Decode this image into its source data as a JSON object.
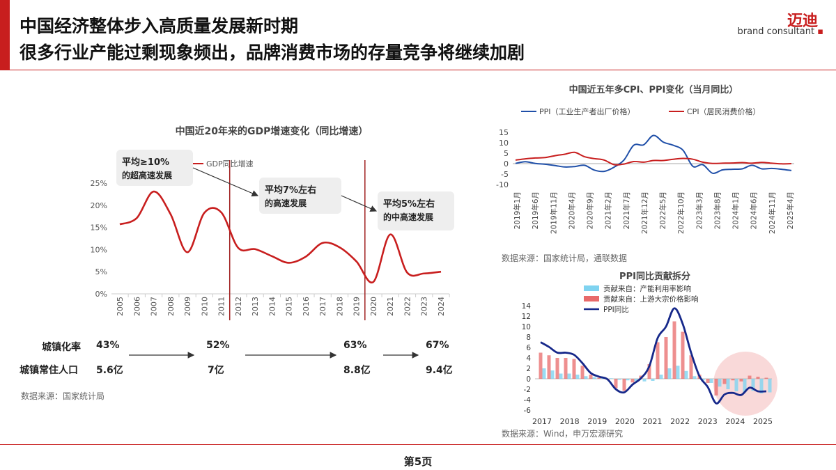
{
  "header": {
    "title_line1": "中国经济整体步入高质量发展新时期",
    "title_line2": "很多行业产能过剩现象频出，品牌消费市场的存量竞争将继续加剧",
    "logo_cn": "迈迪",
    "logo_en": "brand consultant"
  },
  "footer": {
    "page_label": "第5页"
  },
  "left_source": "数据来源：国家统计局",
  "stats": {
    "row1_label": "城镇化率",
    "row2_label": "城镇常住人口",
    "u1": "43%",
    "u2": "52%",
    "u3": "63%",
    "u4": "67%",
    "p1": "5.6亿",
    "p2": "7亿",
    "p3": "8.8亿",
    "p4": "9.4亿"
  },
  "colors": {
    "accent": "#c81e1e",
    "ppi": "#1f4fa8",
    "cpi": "#c81e1e",
    "callout": "#eeeeee"
  },
  "chart_data": [
    {
      "type": "line",
      "title": "中国近20年来的GDP增速变化（同比增速）",
      "legend": "GDP同比增速",
      "x": [
        "2005",
        "2006",
        "2007",
        "2008",
        "2009",
        "2010",
        "2011",
        "2012",
        "2013",
        "2014",
        "2015",
        "2016",
        "2017",
        "2018",
        "2019",
        "2020",
        "2021",
        "2022",
        "2023",
        "2024"
      ],
      "series": [
        {
          "name": "GDP同比增速",
          "values": [
            15.7,
            17.1,
            23.1,
            18.0,
            9.4,
            18.3,
            18.4,
            10.4,
            10.1,
            8.5,
            7.0,
            8.4,
            11.5,
            10.5,
            7.3,
            2.7,
            13.4,
            4.8,
            4.6,
            5.0
          ]
        }
      ],
      "ylim": [
        0,
        25
      ],
      "yticks": [
        "0%",
        "5%",
        "10%",
        "15%",
        "20%",
        "25%"
      ],
      "annotations": [
        {
          "line1": "平均≥10%",
          "line2": "的超高速发展"
        },
        {
          "line1": "平均7%左右",
          "line2": "的高速发展"
        },
        {
          "line1": "平均5%左右",
          "line2": "的中高速发展"
        }
      ]
    },
    {
      "type": "line",
      "title": "中国近五年多CPI、PPI变化（当月同比）",
      "x_labels": [
        "2019年1月",
        "2019年6月",
        "2019年11月",
        "2020年4月",
        "2020年9月",
        "2021年2月",
        "2021年7月",
        "2021年12月",
        "2022年5月",
        "2022年10月",
        "2023年3月",
        "2023年8月",
        "2024年1月",
        "2024年6月",
        "2024年11月",
        "2025年4月"
      ],
      "ylim": [
        -10,
        15
      ],
      "yticks": [
        "15",
        "10",
        "5",
        "0",
        "-5",
        "-10"
      ],
      "series": [
        {
          "name": "PPI（工业生产者出厂价格）",
          "values": [
            0.1,
            0.9,
            0.1,
            -0.3,
            -0.9,
            -1.6,
            -1.4,
            -0.8,
            -3.1,
            -3.7,
            -1.7,
            1.7,
            8.8,
            9.0,
            13.5,
            10.3,
            8.8,
            6.4,
            -1.3,
            -0.5,
            -4.6,
            -3.0,
            -2.7,
            -2.5,
            -0.8,
            -2.5,
            -2.3,
            -2.7,
            -3.3
          ]
        },
        {
          "name": "CPI（居民消费价格）",
          "values": [
            1.7,
            2.3,
            2.7,
            2.9,
            3.8,
            4.5,
            5.4,
            3.3,
            2.4,
            1.7,
            -0.5,
            -0.2,
            1.0,
            0.7,
            1.5,
            1.5,
            2.1,
            2.5,
            2.1,
            0.7,
            0.1,
            0.2,
            0.3,
            0.5,
            0.2,
            0.6,
            0.2,
            -0.1,
            0.0
          ]
        }
      ],
      "source": "数据来源：国家统计局，通联数据"
    },
    {
      "type": "bar",
      "title": "PPI同比贡献拆分",
      "x_labels": [
        "2017",
        "2018",
        "2019",
        "2020",
        "2021",
        "2022",
        "2023",
        "2024",
        "2025"
      ],
      "ylim": [
        -6,
        14
      ],
      "yticks": [
        "14",
        "12",
        "10",
        "8",
        "6",
        "4",
        "2",
        "0",
        "-2",
        "-4",
        "-6"
      ],
      "series": [
        {
          "name": "贡献来自：产能利用率影响",
          "values": [
            2.0,
            1.6,
            1.0,
            1.0,
            0.8,
            0.5,
            0.3,
            0.2,
            0.1,
            -0.2,
            -0.3,
            -0.4,
            -0.5,
            -0.4,
            0.8,
            2.0,
            2.5,
            1.5,
            0.5,
            -0.3,
            -0.8,
            -1.5,
            -2.0,
            -2.4,
            -2.6,
            -2.3,
            -2.8,
            -2.6
          ]
        },
        {
          "name": "贡献来自：上游大宗价格影响",
          "values": [
            5.0,
            4.5,
            4.0,
            4.0,
            3.8,
            2.5,
            0.8,
            0.2,
            -0.2,
            -1.8,
            -2.3,
            -0.7,
            0.6,
            2.8,
            7.0,
            8.0,
            11.0,
            9.0,
            4.5,
            0.8,
            -0.8,
            -3.2,
            -1.0,
            -0.3,
            -0.5,
            0.6,
            0.4,
            0.2
          ]
        },
        {
          "name": "PPI同比",
          "values": [
            7.0,
            6.1,
            5.0,
            5.0,
            4.6,
            3.0,
            1.1,
            0.4,
            -0.1,
            -2.0,
            -2.6,
            -1.1,
            0.1,
            2.4,
            7.8,
            10.0,
            13.5,
            10.5,
            5.0,
            0.5,
            -1.6,
            -4.7,
            -3.0,
            -2.7,
            -3.1,
            -1.7,
            -2.4,
            -2.4
          ]
        }
      ],
      "source": "数据来源：Wind，申万宏源研究"
    }
  ]
}
